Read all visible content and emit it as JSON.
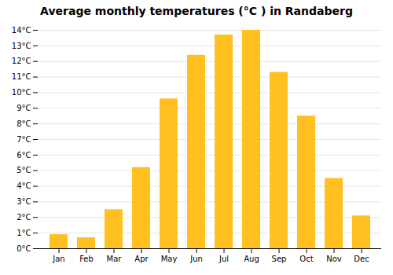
{
  "chart_data": {
    "type": "bar",
    "title": "Average monthly temperatures (°C ) in Randaberg",
    "categories": [
      "Jan",
      "Feb",
      "Mar",
      "Apr",
      "May",
      "Jun",
      "Jul",
      "Aug",
      "Sep",
      "Oct",
      "Nov",
      "Dec"
    ],
    "values": [
      0.9,
      0.7,
      2.5,
      5.2,
      9.6,
      12.4,
      13.7,
      14.0,
      11.3,
      8.5,
      4.5,
      2.1
    ],
    "color": "#FFC020",
    "ylim": [
      0,
      14
    ],
    "yticks": [
      {
        "value": 0,
        "label": "0°C"
      },
      {
        "value": 1,
        "label": "1°C"
      },
      {
        "value": 2,
        "label": "2°C"
      },
      {
        "value": 3,
        "label": "3°C"
      },
      {
        "value": 4,
        "label": "4°C"
      },
      {
        "value": 5,
        "label": "5°C"
      },
      {
        "value": 6,
        "label": "6°C"
      },
      {
        "value": 7,
        "label": "7°C"
      },
      {
        "value": 8,
        "label": "8°C"
      },
      {
        "value": 9,
        "label": "9°C"
      },
      {
        "value": 10,
        "label": "10°C"
      },
      {
        "value": 11,
        "label": "11°C"
      },
      {
        "value": 12,
        "label": "12°C"
      },
      {
        "value": 13,
        "label": "13°C"
      },
      {
        "value": 14,
        "label": "14°C"
      }
    ],
    "grid": true
  }
}
